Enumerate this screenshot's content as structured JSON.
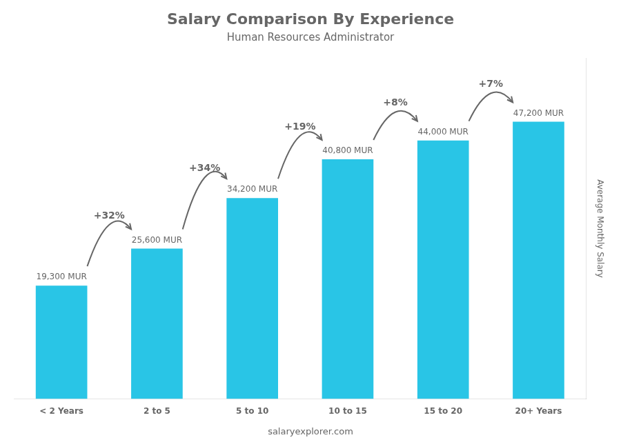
{
  "chart_data": {
    "type": "bar",
    "title": "Salary Comparison By Experience",
    "subtitle": "Human Resources Administrator",
    "categories": [
      "< 2 Years",
      "2 to 5",
      "5 to 10",
      "10 to 15",
      "15 to 20",
      "20+ Years"
    ],
    "values": [
      19300,
      25600,
      34200,
      40800,
      44000,
      47200
    ],
    "value_labels": [
      "19,300 MUR",
      "25,600 MUR",
      "34,200 MUR",
      "40,800 MUR",
      "44,000 MUR",
      "47,200 MUR"
    ],
    "data_labels": true,
    "color": "#29c5e6",
    "ylabel": "Average Monthly Salary",
    "ylim": [
      0,
      58000
    ],
    "tick_labels": "x",
    "grid": false,
    "annotations": [
      {
        "text": "+32%",
        "from": "< 2 Years",
        "to": "2 to 5"
      },
      {
        "text": "+34%",
        "from": "2 to 5",
        "to": "5 to 10"
      },
      {
        "text": "+19%",
        "from": "5 to 10",
        "to": "10 to 15"
      },
      {
        "text": "+8%",
        "from": "10 to 15",
        "to": "15 to 20"
      },
      {
        "text": "+7%",
        "from": "15 to 20",
        "to": "20+ Years"
      }
    ],
    "footer": "salaryexplorer.com"
  }
}
